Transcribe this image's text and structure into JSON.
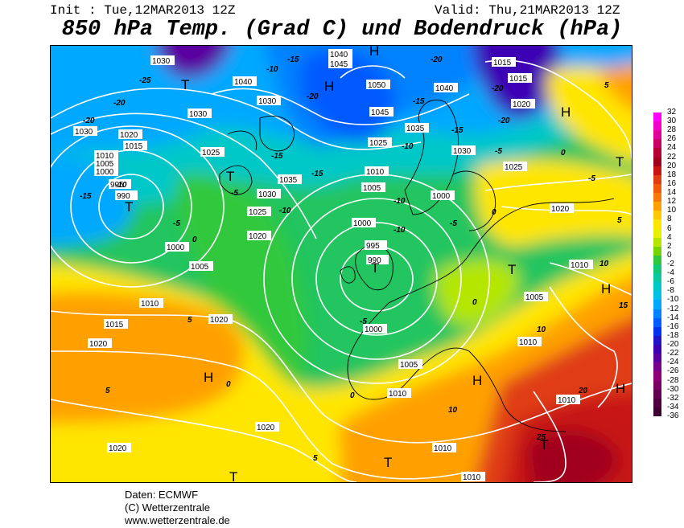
{
  "header": {
    "init": "Init : Tue,12MAR2013 12Z",
    "valid": "Valid: Thu,21MAR2013 12Z",
    "title": "850 hPa Temp. (Grad C) und Bodendruck (hPa)"
  },
  "pressure_labels": [
    "1030",
    "1035",
    "1040",
    "1045",
    "1050",
    "1025",
    "1020",
    "1015",
    "1010",
    "1005",
    "1000",
    "995",
    "990"
  ],
  "temperature_labels": [
    "-25",
    "-20",
    "-15",
    "-10",
    "-5",
    "0",
    "5",
    "10",
    "15",
    "20",
    "25"
  ],
  "pressure_systems": {
    "high": "H",
    "low": "T"
  },
  "legend": {
    "ticks": [
      "32",
      "30",
      "28",
      "26",
      "24",
      "22",
      "20",
      "18",
      "16",
      "14",
      "12",
      "10",
      "8",
      "6",
      "4",
      "2",
      "0",
      "-2",
      "-4",
      "-6",
      "-8",
      "-10",
      "-12",
      "-14",
      "-16",
      "-18",
      "-20",
      "-22",
      "-24",
      "-26",
      "-28",
      "-30",
      "-32",
      "-34",
      "-36"
    ],
    "colors": [
      "#ff00ff",
      "#f000c8",
      "#e0009a",
      "#c80064",
      "#b40032",
      "#a0001e",
      "#c81414",
      "#e03c14",
      "#f05a0a",
      "#f8780a",
      "#ffa000",
      "#ffc800",
      "#ffe600",
      "#e6f000",
      "#b4e600",
      "#78d200",
      "#32c83c",
      "#14c878",
      "#0ac8a0",
      "#00c8c8",
      "#00c0e6",
      "#00a8ff",
      "#0082ff",
      "#005aff",
      "#0032f0",
      "#1e14c8",
      "#3c00b4",
      "#5a00a0",
      "#78008c",
      "#8c0078",
      "#7a0064",
      "#640050",
      "#500040",
      "#3c0032"
    ]
  },
  "credits": {
    "line1": "Daten: ECMWF",
    "line2": "(C) Wetterzentrale",
    "line3": "www.wetterzentrale.de"
  }
}
